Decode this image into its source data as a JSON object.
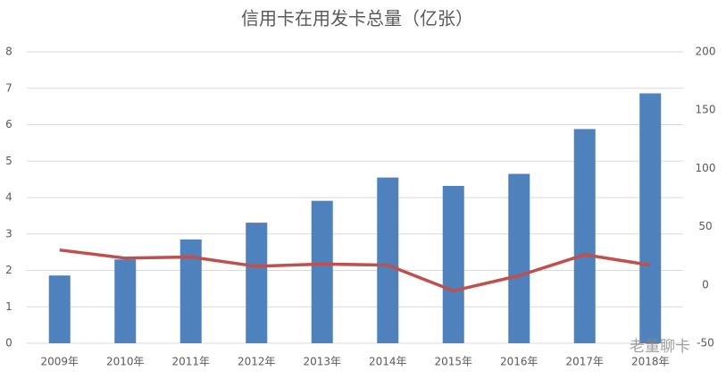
{
  "chart_data": {
    "type": "combo",
    "title": "信用卡在用发卡总量（亿张）",
    "categories": [
      "2009年",
      "2010年",
      "2011年",
      "2012年",
      "2013年",
      "2014年",
      "2015年",
      "2016年",
      "2017年",
      "2018年"
    ],
    "series": [
      {
        "type": "bar",
        "color": "#4f81bd",
        "values": [
          1.86,
          2.3,
          2.85,
          3.31,
          3.91,
          4.55,
          4.32,
          4.65,
          5.88,
          6.86
        ]
      },
      {
        "type": "line",
        "axis": "y2",
        "color": "#c0504d",
        "values": [
          30,
          23,
          24,
          16,
          18,
          17,
          -5,
          8,
          26,
          17
        ]
      }
    ],
    "ylim": [
      0,
      8
    ],
    "yticks": [
      0,
      1,
      2,
      3,
      4,
      5,
      6,
      7,
      8
    ],
    "y2lim": [
      -50,
      200
    ],
    "y2ticks": [
      -50,
      0,
      50,
      100,
      150,
      200
    ],
    "grid": true,
    "watermark": "老董聊卡"
  }
}
